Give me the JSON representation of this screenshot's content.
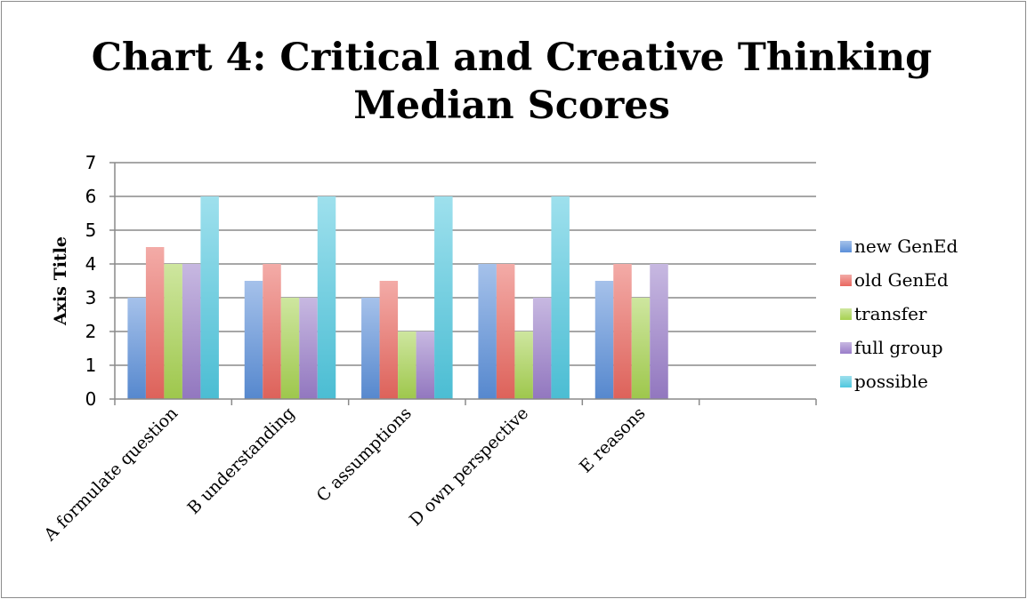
{
  "chart_data": {
    "type": "bar",
    "title_lines": [
      "Chart 4: Critical and Creative Thinking",
      "Median Scores"
    ],
    "ylabel": "Axis Title",
    "xlabel": "",
    "ylim": [
      0,
      7
    ],
    "yticks": [
      "0",
      "1",
      "2",
      "3",
      "4",
      "5",
      "6",
      "7"
    ],
    "grid": true,
    "legend_position": "right",
    "categories": [
      "A formulate question",
      "B understanding",
      "C assumptions",
      "D own perspective",
      "E reasons",
      ""
    ],
    "series": [
      {
        "name": "new GenEd",
        "color": "#5b8fd9",
        "values": [
          3,
          3.5,
          3,
          4,
          3.5,
          null
        ]
      },
      {
        "name": "old GenEd",
        "color": "#e9675f",
        "values": [
          4.5,
          4,
          3.5,
          4,
          4,
          null
        ]
      },
      {
        "name": "transfer",
        "color": "#a6d150",
        "values": [
          4,
          3,
          2,
          2,
          3,
          null
        ]
      },
      {
        "name": "full group",
        "color": "#9a7dc9",
        "values": [
          4,
          3,
          2,
          3,
          4,
          null
        ]
      },
      {
        "name": "possible",
        "color": "#4fc7de",
        "values": [
          6,
          6,
          6,
          6,
          null,
          null
        ]
      }
    ]
  }
}
